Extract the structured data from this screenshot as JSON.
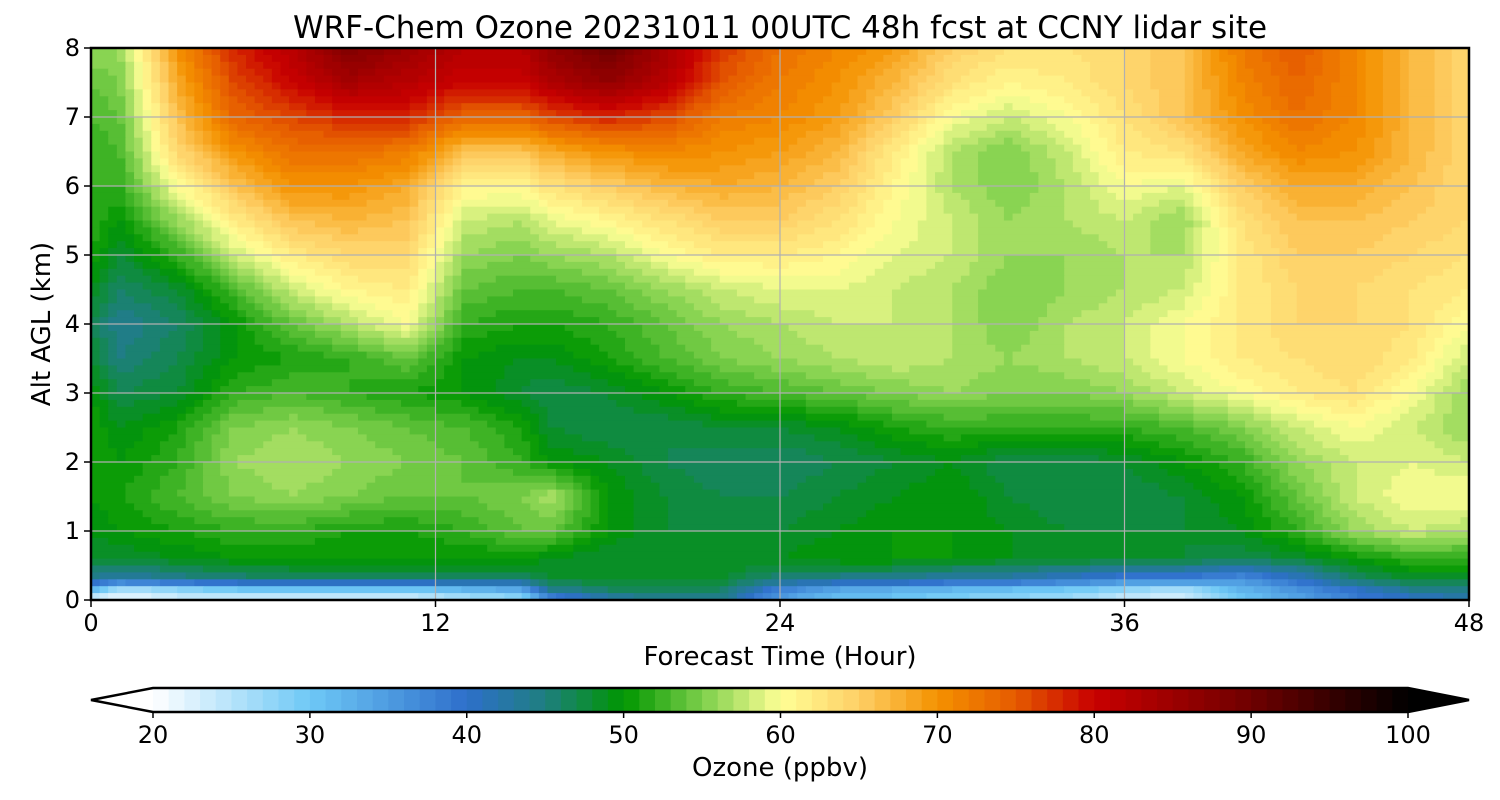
{
  "chart_data": {
    "type": "heatmap",
    "title": "WRF-Chem Ozone  20231011 00UTC 48h fcst at CCNY lidar site",
    "xlabel": "Forecast Time (Hour)",
    "ylabel": "Alt AGL (km)",
    "xlim": [
      0,
      48
    ],
    "ylim": [
      0,
      8
    ],
    "x_ticks": [
      "0",
      "12",
      "24",
      "36",
      "48"
    ],
    "x_tick_values": [
      0,
      12,
      24,
      36,
      48
    ],
    "y_ticks": [
      "0",
      "1",
      "2",
      "3",
      "4",
      "5",
      "6",
      "7",
      "8"
    ],
    "y_tick_values": [
      0,
      1,
      2,
      3,
      4,
      5,
      6,
      7,
      8
    ],
    "grid": true,
    "x_hours": [
      0,
      1,
      3,
      5,
      7,
      9,
      11,
      13,
      15,
      16,
      18,
      20,
      22,
      24,
      26,
      28,
      30,
      32,
      34,
      36,
      38,
      40,
      42,
      44,
      46,
      48
    ],
    "alt_km": [
      0.0,
      0.15,
      0.3,
      0.6,
      1.0,
      1.5,
      2.0,
      2.5,
      3.0,
      3.5,
      4.0,
      4.5,
      5.0,
      5.5,
      6.0,
      6.5,
      7.0,
      7.5,
      8.0
    ],
    "ozone_ppbv": [
      [
        22,
        20,
        22,
        22,
        22,
        22,
        22,
        24,
        26,
        36,
        42,
        44,
        44,
        34,
        30,
        30,
        28,
        27,
        26,
        23,
        22,
        30,
        34,
        38,
        40,
        42
      ],
      [
        32,
        26,
        28,
        30,
        30,
        30,
        30,
        32,
        34,
        44,
        46,
        46,
        46,
        38,
        34,
        33,
        32,
        31,
        30,
        28,
        26,
        32,
        36,
        40,
        44,
        44
      ],
      [
        44,
        42,
        44,
        45,
        46,
        46,
        46,
        46,
        46,
        48,
        48,
        48,
        48,
        45,
        44,
        44,
        42,
        42,
        40,
        38,
        38,
        36,
        40,
        46,
        48,
        48
      ],
      [
        48,
        48,
        49,
        50,
        50,
        50,
        50,
        50,
        50,
        49,
        48,
        48,
        49,
        49,
        50,
        50,
        50,
        49,
        49,
        48,
        48,
        47,
        48,
        50,
        52,
        52
      ],
      [
        49,
        50,
        51,
        52,
        52,
        51,
        51,
        52,
        54,
        54,
        50,
        48,
        48,
        48,
        49,
        50,
        50,
        49,
        48,
        48,
        48,
        49,
        52,
        56,
        58,
        57
      ],
      [
        50,
        51,
        53,
        55,
        56,
        55,
        54,
        54,
        55,
        57,
        50,
        48,
        47,
        47,
        48,
        49,
        50,
        48,
        47,
        47,
        48,
        50,
        54,
        58,
        60,
        60
      ],
      [
        51,
        50,
        52,
        56,
        57,
        56,
        55,
        54,
        52,
        50,
        49,
        47,
        46,
        46,
        47,
        48,
        49,
        47,
        47,
        48,
        50,
        52,
        56,
        58,
        59,
        58
      ],
      [
        51,
        49,
        51,
        55,
        56,
        55,
        54,
        53,
        51,
        48,
        47,
        47,
        48,
        48,
        49,
        51,
        52,
        52,
        52,
        52,
        53,
        55,
        58,
        60,
        58,
        56
      ],
      [
        50,
        47,
        48,
        52,
        53,
        52,
        51,
        50,
        48,
        47,
        48,
        50,
        52,
        53,
        54,
        55,
        56,
        55,
        55,
        56,
        58,
        60,
        62,
        63,
        60,
        56
      ],
      [
        48,
        45,
        47,
        50,
        51,
        52,
        54,
        50,
        49,
        49,
        51,
        53,
        55,
        56,
        57,
        58,
        57,
        56,
        57,
        58,
        60,
        62,
        63,
        64,
        62,
        58
      ],
      [
        47,
        44,
        46,
        50,
        54,
        57,
        60,
        52,
        51,
        51,
        52,
        54,
        56,
        57,
        58,
        58,
        57,
        55,
        57,
        58,
        60,
        62,
        64,
        64,
        63,
        60
      ],
      [
        49,
        46,
        48,
        53,
        58,
        61,
        62,
        54,
        53,
        53,
        54,
        56,
        58,
        59,
        59,
        58,
        57,
        55,
        56,
        57,
        58,
        62,
        64,
        64,
        63,
        62
      ],
      [
        51,
        48,
        52,
        58,
        62,
        64,
        64,
        56,
        55,
        56,
        57,
        60,
        62,
        62,
        61,
        59,
        58,
        56,
        56,
        57,
        57,
        62,
        65,
        65,
        64,
        63
      ],
      [
        52,
        50,
        56,
        62,
        66,
        67,
        66,
        58,
        57,
        59,
        61,
        63,
        65,
        65,
        63,
        60,
        58,
        56,
        57,
        58,
        56,
        63,
        66,
        66,
        65,
        64
      ],
      [
        52,
        52,
        60,
        66,
        70,
        70,
        68,
        61,
        61,
        63,
        65,
        67,
        68,
        67,
        65,
        61,
        57,
        55,
        57,
        60,
        59,
        65,
        68,
        68,
        66,
        64
      ],
      [
        52,
        53,
        64,
        70,
        73,
        73,
        72,
        66,
        66,
        68,
        70,
        71,
        70,
        69,
        67,
        62,
        57,
        55,
        58,
        62,
        63,
        68,
        71,
        70,
        67,
        64
      ],
      [
        53,
        54,
        66,
        74,
        76,
        78,
        78,
        74,
        74,
        76,
        78,
        76,
        72,
        71,
        69,
        65,
        60,
        58,
        60,
        63,
        66,
        70,
        73,
        71,
        67,
        64
      ],
      [
        54,
        55,
        68,
        76,
        80,
        84,
        82,
        80,
        80,
        83,
        86,
        82,
        75,
        72,
        70,
        67,
        63,
        61,
        62,
        64,
        66,
        71,
        74,
        71,
        67,
        64
      ],
      [
        56,
        56,
        70,
        78,
        82,
        88,
        85,
        82,
        82,
        86,
        90,
        84,
        77,
        73,
        71,
        69,
        65,
        63,
        63,
        64,
        66,
        72,
        75,
        71,
        67,
        64
      ]
    ],
    "colorbar": {
      "label": "Ozone  (ppbv)",
      "min": 20,
      "max": 100,
      "step": 1,
      "ticks": [
        "20",
        "30",
        "40",
        "50",
        "60",
        "70",
        "80",
        "90",
        "100"
      ],
      "tick_values": [
        20,
        30,
        40,
        50,
        60,
        70,
        80,
        90,
        100
      ],
      "extend": "both",
      "under_color": "#ffffff",
      "over_color": "#000000",
      "stops": [
        {
          "v": 20,
          "c": "#ffffff"
        },
        {
          "v": 30,
          "c": "#6ec8f6"
        },
        {
          "v": 40,
          "c": "#2e6fcb"
        },
        {
          "v": 45,
          "c": "#1e7f7f"
        },
        {
          "v": 50,
          "c": "#009600"
        },
        {
          "v": 55,
          "c": "#7ccf4a"
        },
        {
          "v": 60,
          "c": "#ffff96"
        },
        {
          "v": 65,
          "c": "#fecf66"
        },
        {
          "v": 70,
          "c": "#f49200"
        },
        {
          "v": 75,
          "c": "#e55a00"
        },
        {
          "v": 80,
          "c": "#c80000"
        },
        {
          "v": 90,
          "c": "#6e0000"
        },
        {
          "v": 100,
          "c": "#000000"
        }
      ]
    }
  }
}
